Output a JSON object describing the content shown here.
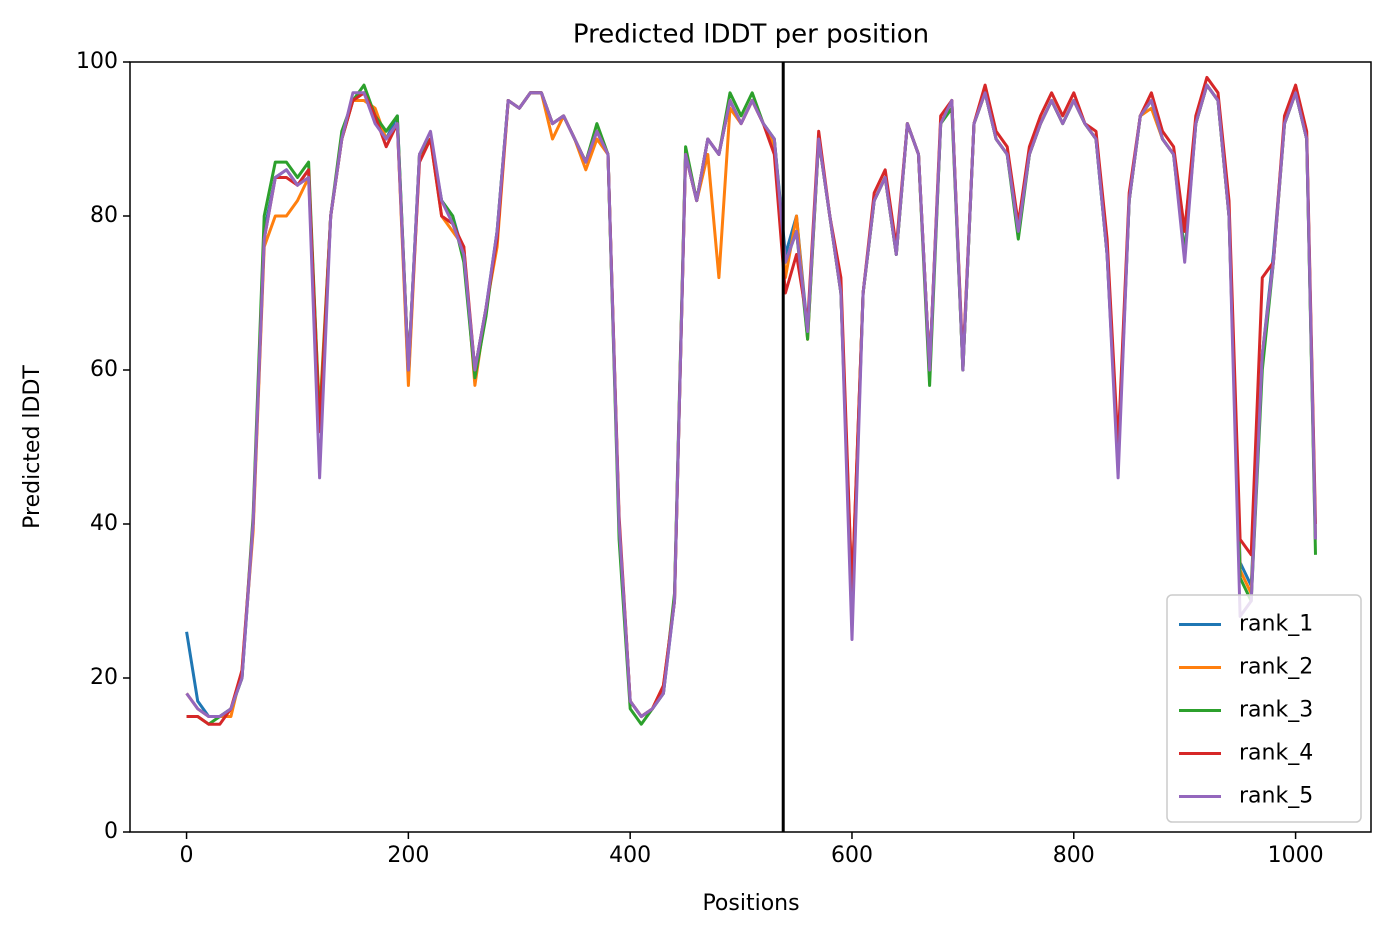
{
  "chart_data": {
    "type": "line",
    "title": "Predicted lDDT per position",
    "xlabel": "Positions",
    "ylabel": "Predicted lDDT",
    "x": [
      0,
      10,
      20,
      30,
      40,
      50,
      60,
      70,
      80,
      90,
      100,
      110,
      120,
      130,
      140,
      150,
      160,
      170,
      180,
      190,
      200,
      210,
      220,
      230,
      240,
      250,
      260,
      270,
      280,
      290,
      300,
      310,
      320,
      330,
      340,
      350,
      360,
      370,
      380,
      390,
      400,
      410,
      420,
      430,
      440,
      450,
      460,
      470,
      480,
      490,
      500,
      510,
      520,
      530,
      540,
      550,
      560,
      570,
      580,
      590,
      600,
      610,
      620,
      630,
      640,
      650,
      660,
      670,
      680,
      690,
      700,
      710,
      720,
      730,
      740,
      750,
      760,
      770,
      780,
      790,
      800,
      810,
      820,
      830,
      840,
      850,
      860,
      870,
      880,
      890,
      900,
      910,
      920,
      930,
      940,
      950,
      960,
      970,
      980,
      990,
      1000,
      1010,
      1018
    ],
    "series": [
      {
        "name": "rank_1",
        "color": "#1f77b4",
        "values": [
          26,
          17,
          15,
          15,
          16,
          20,
          40,
          78,
          85,
          86,
          84,
          86,
          52,
          80,
          90,
          95,
          96,
          93,
          90,
          93,
          60,
          88,
          90,
          82,
          80,
          75,
          60,
          68,
          78,
          95,
          94,
          96,
          96,
          92,
          93,
          90,
          87,
          91,
          88,
          40,
          17,
          15,
          16,
          18,
          30,
          88,
          82,
          90,
          88,
          95,
          92,
          95,
          92,
          90,
          75,
          80,
          65,
          90,
          80,
          70,
          30,
          70,
          82,
          85,
          75,
          92,
          88,
          60,
          92,
          95,
          60,
          92,
          96,
          90,
          88,
          78,
          88,
          92,
          95,
          92,
          95,
          92,
          90,
          75,
          48,
          82,
          93,
          95,
          90,
          88,
          75,
          92,
          97,
          95,
          80,
          35,
          32,
          62,
          75,
          92,
          96,
          90,
          38
        ]
      },
      {
        "name": "rank_2",
        "color": "#ff7f0e",
        "values": [
          18,
          16,
          15,
          15,
          15,
          21,
          39,
          76,
          80,
          80,
          82,
          85,
          54,
          80,
          90,
          95,
          95,
          94,
          90,
          92,
          58,
          88,
          90,
          80,
          78,
          76,
          58,
          68,
          76,
          95,
          94,
          96,
          96,
          90,
          93,
          90,
          86,
          90,
          88,
          40,
          17,
          15,
          16,
          19,
          30,
          88,
          82,
          88,
          72,
          94,
          92,
          95,
          92,
          89,
          72,
          80,
          64,
          90,
          80,
          70,
          31,
          70,
          82,
          85,
          75,
          92,
          88,
          60,
          92,
          95,
          60,
          92,
          96,
          90,
          88,
          78,
          88,
          92,
          95,
          92,
          95,
          92,
          90,
          76,
          49,
          82,
          93,
          94,
          90,
          88,
          78,
          92,
          97,
          95,
          80,
          34,
          31,
          62,
          74,
          92,
          96,
          90,
          38
        ]
      },
      {
        "name": "rank_3",
        "color": "#2ca02c",
        "values": [
          15,
          15,
          14,
          15,
          16,
          20,
          41,
          80,
          87,
          87,
          85,
          87,
          53,
          80,
          91,
          95,
          97,
          93,
          91,
          93,
          60,
          88,
          90,
          82,
          80,
          74,
          59,
          67,
          78,
          95,
          94,
          96,
          96,
          92,
          93,
          90,
          87,
          92,
          88,
          38,
          16,
          14,
          16,
          18,
          31,
          89,
          82,
          90,
          88,
          96,
          93,
          96,
          92,
          90,
          74,
          78,
          64,
          90,
          80,
          70,
          29,
          70,
          82,
          85,
          75,
          92,
          88,
          58,
          92,
          94,
          60,
          92,
          96,
          90,
          88,
          77,
          88,
          92,
          95,
          92,
          95,
          92,
          90,
          75,
          48,
          82,
          93,
          95,
          90,
          88,
          75,
          92,
          97,
          95,
          80,
          33,
          30,
          60,
          74,
          92,
          96,
          90,
          36
        ]
      },
      {
        "name": "rank_4",
        "color": "#d62728",
        "values": [
          15,
          15,
          14,
          14,
          16,
          21,
          40,
          77,
          85,
          85,
          84,
          86,
          52,
          80,
          90,
          95,
          96,
          93,
          89,
          92,
          60,
          87,
          90,
          80,
          79,
          76,
          60,
          68,
          77,
          95,
          94,
          96,
          96,
          92,
          93,
          90,
          87,
          91,
          88,
          41,
          17,
          15,
          16,
          19,
          30,
          88,
          82,
          90,
          88,
          95,
          92,
          95,
          92,
          88,
          70,
          75,
          66,
          91,
          80,
          72,
          31,
          70,
          83,
          86,
          76,
          92,
          88,
          60,
          93,
          95,
          61,
          92,
          97,
          91,
          89,
          79,
          89,
          93,
          96,
          93,
          96,
          92,
          91,
          77,
          50,
          83,
          93,
          96,
          91,
          89,
          78,
          93,
          98,
          96,
          82,
          38,
          36,
          72,
          74,
          93,
          97,
          91,
          40
        ]
      },
      {
        "name": "rank_5",
        "color": "#9467bd",
        "values": [
          18,
          16,
          15,
          15,
          16,
          20,
          40,
          77,
          85,
          86,
          84,
          85,
          46,
          80,
          90,
          96,
          96,
          92,
          90,
          92,
          60,
          88,
          91,
          82,
          79,
          75,
          60,
          68,
          78,
          95,
          94,
          96,
          96,
          92,
          93,
          90,
          87,
          91,
          88,
          40,
          17,
          15,
          16,
          18,
          30,
          88,
          82,
          90,
          88,
          95,
          92,
          95,
          92,
          90,
          74,
          78,
          65,
          90,
          80,
          70,
          25,
          70,
          82,
          85,
          75,
          92,
          88,
          60,
          92,
          95,
          60,
          92,
          96,
          90,
          88,
          78,
          88,
          92,
          95,
          92,
          95,
          92,
          90,
          75,
          46,
          82,
          93,
          95,
          90,
          88,
          74,
          92,
          97,
          95,
          80,
          28,
          30,
          62,
          74,
          92,
          96,
          90,
          38
        ]
      }
    ],
    "vlines": [
      538
    ],
    "vline_color": "#000000",
    "xlim": [
      -51,
      1068
    ],
    "xticks": [
      0,
      200,
      400,
      600,
      800,
      1000
    ],
    "ylim": [
      0,
      100
    ],
    "yticks": [
      0,
      20,
      40,
      60,
      80,
      100
    ],
    "legend": "lower right"
  }
}
